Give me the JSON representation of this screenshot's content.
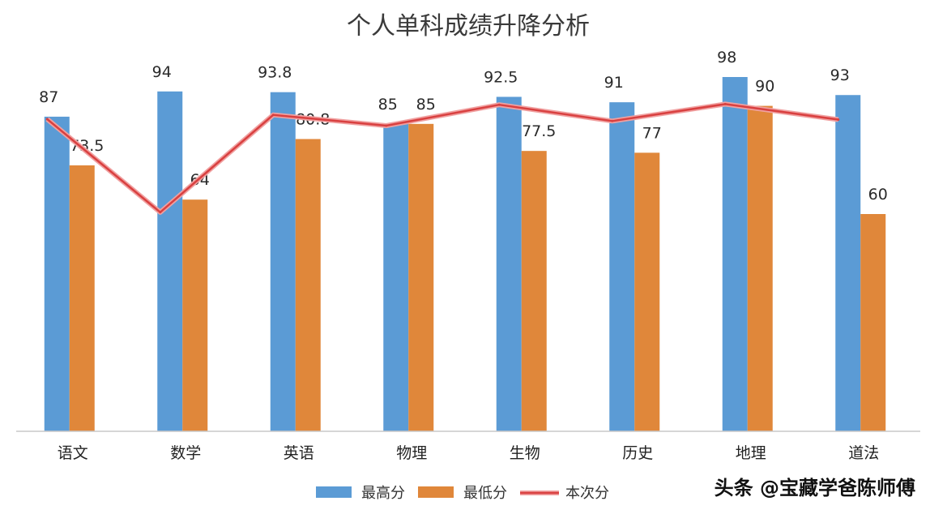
{
  "chart_data": {
    "type": "bar",
    "title": "个人单科成绩升降分析",
    "categories": [
      "语文",
      "数学",
      "英语",
      "物理",
      "生物",
      "历史",
      "地理",
      "道法"
    ],
    "series": [
      {
        "name": "最高分",
        "kind": "bar",
        "color": "#5b9bd5",
        "values": [
          87,
          94,
          93.8,
          85,
          92.5,
          91,
          98,
          93
        ]
      },
      {
        "name": "最低分",
        "kind": "bar",
        "color": "#e0873a",
        "values": [
          73.5,
          64,
          80.8,
          85,
          77.5,
          77,
          90,
          60
        ]
      },
      {
        "name": "本次分",
        "kind": "line",
        "color": "#d94040",
        "values": [
          86.3,
          60.5,
          87.5,
          84.5,
          90.3,
          85.8,
          90.5,
          86.2
        ]
      }
    ],
    "ylim": [
      0,
      100
    ],
    "grid": false,
    "legend": "bottom"
  },
  "watermark": "头条 @宝藏学爸陈师傅"
}
